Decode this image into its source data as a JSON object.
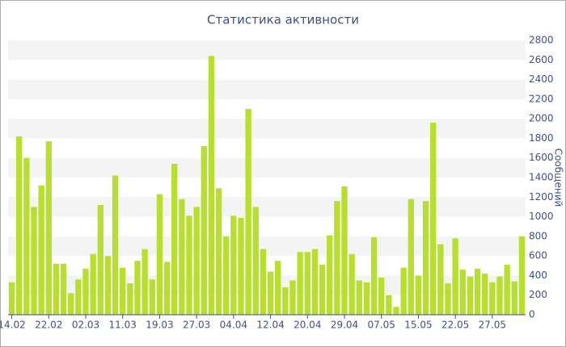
{
  "chart_data": {
    "type": "bar",
    "title": "Статистика активности",
    "y_axis_label": "Сообщений",
    "categories": [
      "14.02",
      null,
      null,
      null,
      null,
      "22.02",
      null,
      null,
      null,
      null,
      "02.03",
      null,
      null,
      null,
      null,
      "11.03",
      null,
      null,
      null,
      null,
      "19.03",
      null,
      null,
      null,
      null,
      "27.03",
      null,
      null,
      null,
      null,
      "04.04",
      null,
      null,
      null,
      null,
      "12.04",
      null,
      null,
      null,
      null,
      "20.04",
      null,
      null,
      null,
      null,
      "29.04",
      null,
      null,
      null,
      null,
      "07.05",
      null,
      null,
      null,
      null,
      "15.05",
      null,
      null,
      null,
      null,
      "22.05",
      null,
      null,
      null,
      null,
      "27.05",
      null,
      null,
      null,
      null
    ],
    "values": [
      330,
      1820,
      1600,
      1100,
      1320,
      1770,
      520,
      520,
      220,
      360,
      470,
      620,
      1120,
      600,
      1420,
      480,
      320,
      550,
      670,
      360,
      1230,
      540,
      1540,
      1180,
      1010,
      1100,
      1720,
      2640,
      1290,
      800,
      1010,
      990,
      2100,
      1100,
      670,
      440,
      550,
      280,
      350,
      640,
      640,
      670,
      510,
      810,
      1160,
      1310,
      620,
      350,
      330,
      790,
      380,
      200,
      80,
      480,
      1180,
      400,
      1160,
      1960,
      720,
      320,
      780,
      460,
      390,
      470,
      420,
      330,
      390,
      510,
      340,
      800
    ],
    "color": "#b8de2f",
    "ylim": [
      0,
      2800
    ],
    "yticks": [
      0,
      200,
      400,
      600,
      800,
      1000,
      1200,
      1400,
      1600,
      1800,
      2000,
      2200,
      2400,
      2600,
      2800
    ],
    "grid": true
  }
}
